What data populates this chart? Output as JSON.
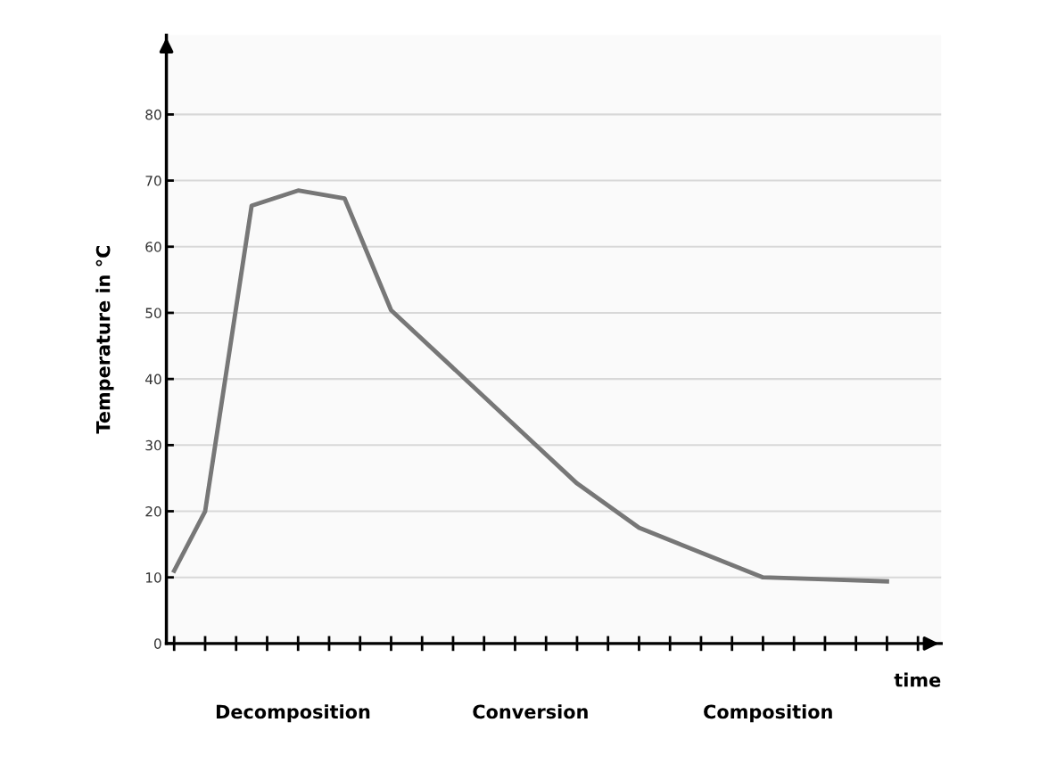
{
  "chart_data": {
    "type": "line",
    "ylabel": "Temperature in °C",
    "xlabel": "time",
    "categories": [
      null,
      null,
      null,
      null,
      null,
      null,
      null,
      null,
      null,
      null,
      null,
      null,
      null,
      null,
      null,
      null,
      null,
      null,
      null,
      null,
      null,
      null,
      null,
      null,
      null,
      null,
      null,
      null,
      null,
      null,
      null,
      null,
      null,
      null,
      null,
      null,
      null,
      null,
      null,
      null,
      null,
      null,
      null,
      null,
      null,
      null,
      null,
      null,
      null,
      null
    ],
    "series": [
      {
        "color": "#777777",
        "values": [
          11,
          null,
          20,
          null,
          null,
          66.2,
          null,
          null,
          68.5,
          null,
          null,
          67.3,
          null,
          null,
          50.4,
          null,
          null,
          null,
          null,
          null,
          null,
          null,
          null,
          null,
          null,
          null,
          24.2,
          null,
          null,
          null,
          17.5,
          null,
          null,
          null,
          null,
          null,
          null,
          null,
          10,
          null,
          null,
          null,
          9.7,
          null,
          null,
          null,
          9.4,
          null,
          null,
          null
        ]
      }
    ],
    "ylim": [
      0,
      92
    ],
    "yticks": [
      0,
      10,
      20,
      30,
      40,
      50,
      60,
      70,
      80
    ],
    "grid": "y",
    "legend": false,
    "marker": "none",
    "line_style": "solid",
    "annotations": [
      "Decomposition",
      "Conversion",
      "Composition"
    ]
  }
}
